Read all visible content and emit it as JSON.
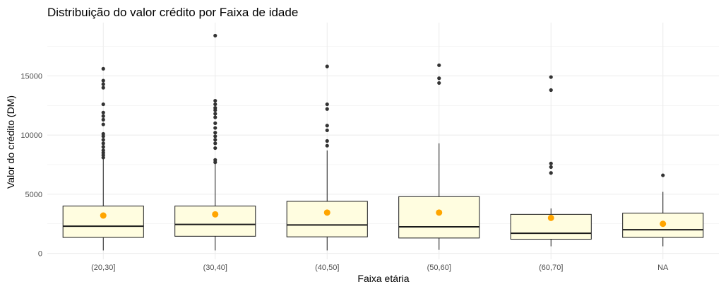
{
  "chart_data": {
    "type": "boxplot",
    "title": "Distribuição do valor crédito por Faixa de idade",
    "xlabel": "Faixa etária",
    "ylabel": "Valor do crédito (DM)",
    "ylim": [
      -500,
      19500
    ],
    "yticks": [
      0,
      5000,
      10000,
      15000
    ],
    "grid": true,
    "colors": {
      "box_fill": "#FFFDE0",
      "box_stroke": "#1a1a1a",
      "mean_point": "#FFA500",
      "outlier": "#333333",
      "grid": "#EBEBEB"
    },
    "categories": [
      "(20,30]",
      "(30,40]",
      "(40,50]",
      "(50,60]",
      "(60,70]",
      "NA"
    ],
    "boxes": [
      {
        "min": 250,
        "q1": 1350,
        "median": 2300,
        "q3": 4000,
        "max": 8000,
        "mean": 3200,
        "outliers": [
          8100,
          8300,
          8500,
          8700,
          9000,
          9300,
          9600,
          9900,
          10100,
          10900,
          11300,
          11600,
          11900,
          12600,
          14000,
          14300,
          14600,
          15600
        ]
      },
      {
        "min": 250,
        "q1": 1450,
        "median": 2450,
        "q3": 4000,
        "max": 7600,
        "mean": 3300,
        "outliers": [
          7700,
          7900,
          8900,
          9300,
          9600,
          9900,
          10200,
          10600,
          11000,
          11500,
          11800,
          12100,
          12300,
          12600,
          12900,
          18400
        ]
      },
      {
        "min": 250,
        "q1": 1400,
        "median": 2400,
        "q3": 4400,
        "max": 8700,
        "mean": 3450,
        "outliers": [
          9100,
          9500,
          10400,
          10800,
          12200,
          12600,
          15800
        ]
      },
      {
        "min": 300,
        "q1": 1300,
        "median": 2250,
        "q3": 4800,
        "max": 9300,
        "mean": 3450,
        "outliers": [
          14400,
          14800,
          15900
        ]
      },
      {
        "min": 600,
        "q1": 1200,
        "median": 1700,
        "q3": 3300,
        "max": 3800,
        "mean": 3000,
        "outliers": [
          6800,
          7300,
          7600,
          13800,
          14900
        ]
      },
      {
        "min": 600,
        "q1": 1350,
        "median": 2000,
        "q3": 3400,
        "max": 5200,
        "mean": 2500,
        "outliers": [
          6600
        ]
      }
    ]
  }
}
